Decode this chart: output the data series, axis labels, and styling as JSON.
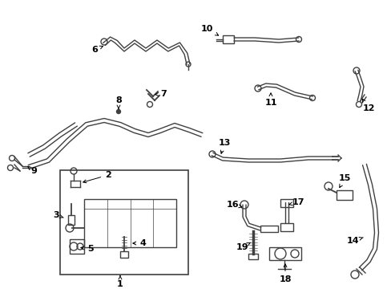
{
  "bg_color": "#ffffff",
  "line_color": "#404040",
  "label_color": "#000000",
  "fig_w": 4.89,
  "fig_h": 3.6,
  "dpi": 100
}
